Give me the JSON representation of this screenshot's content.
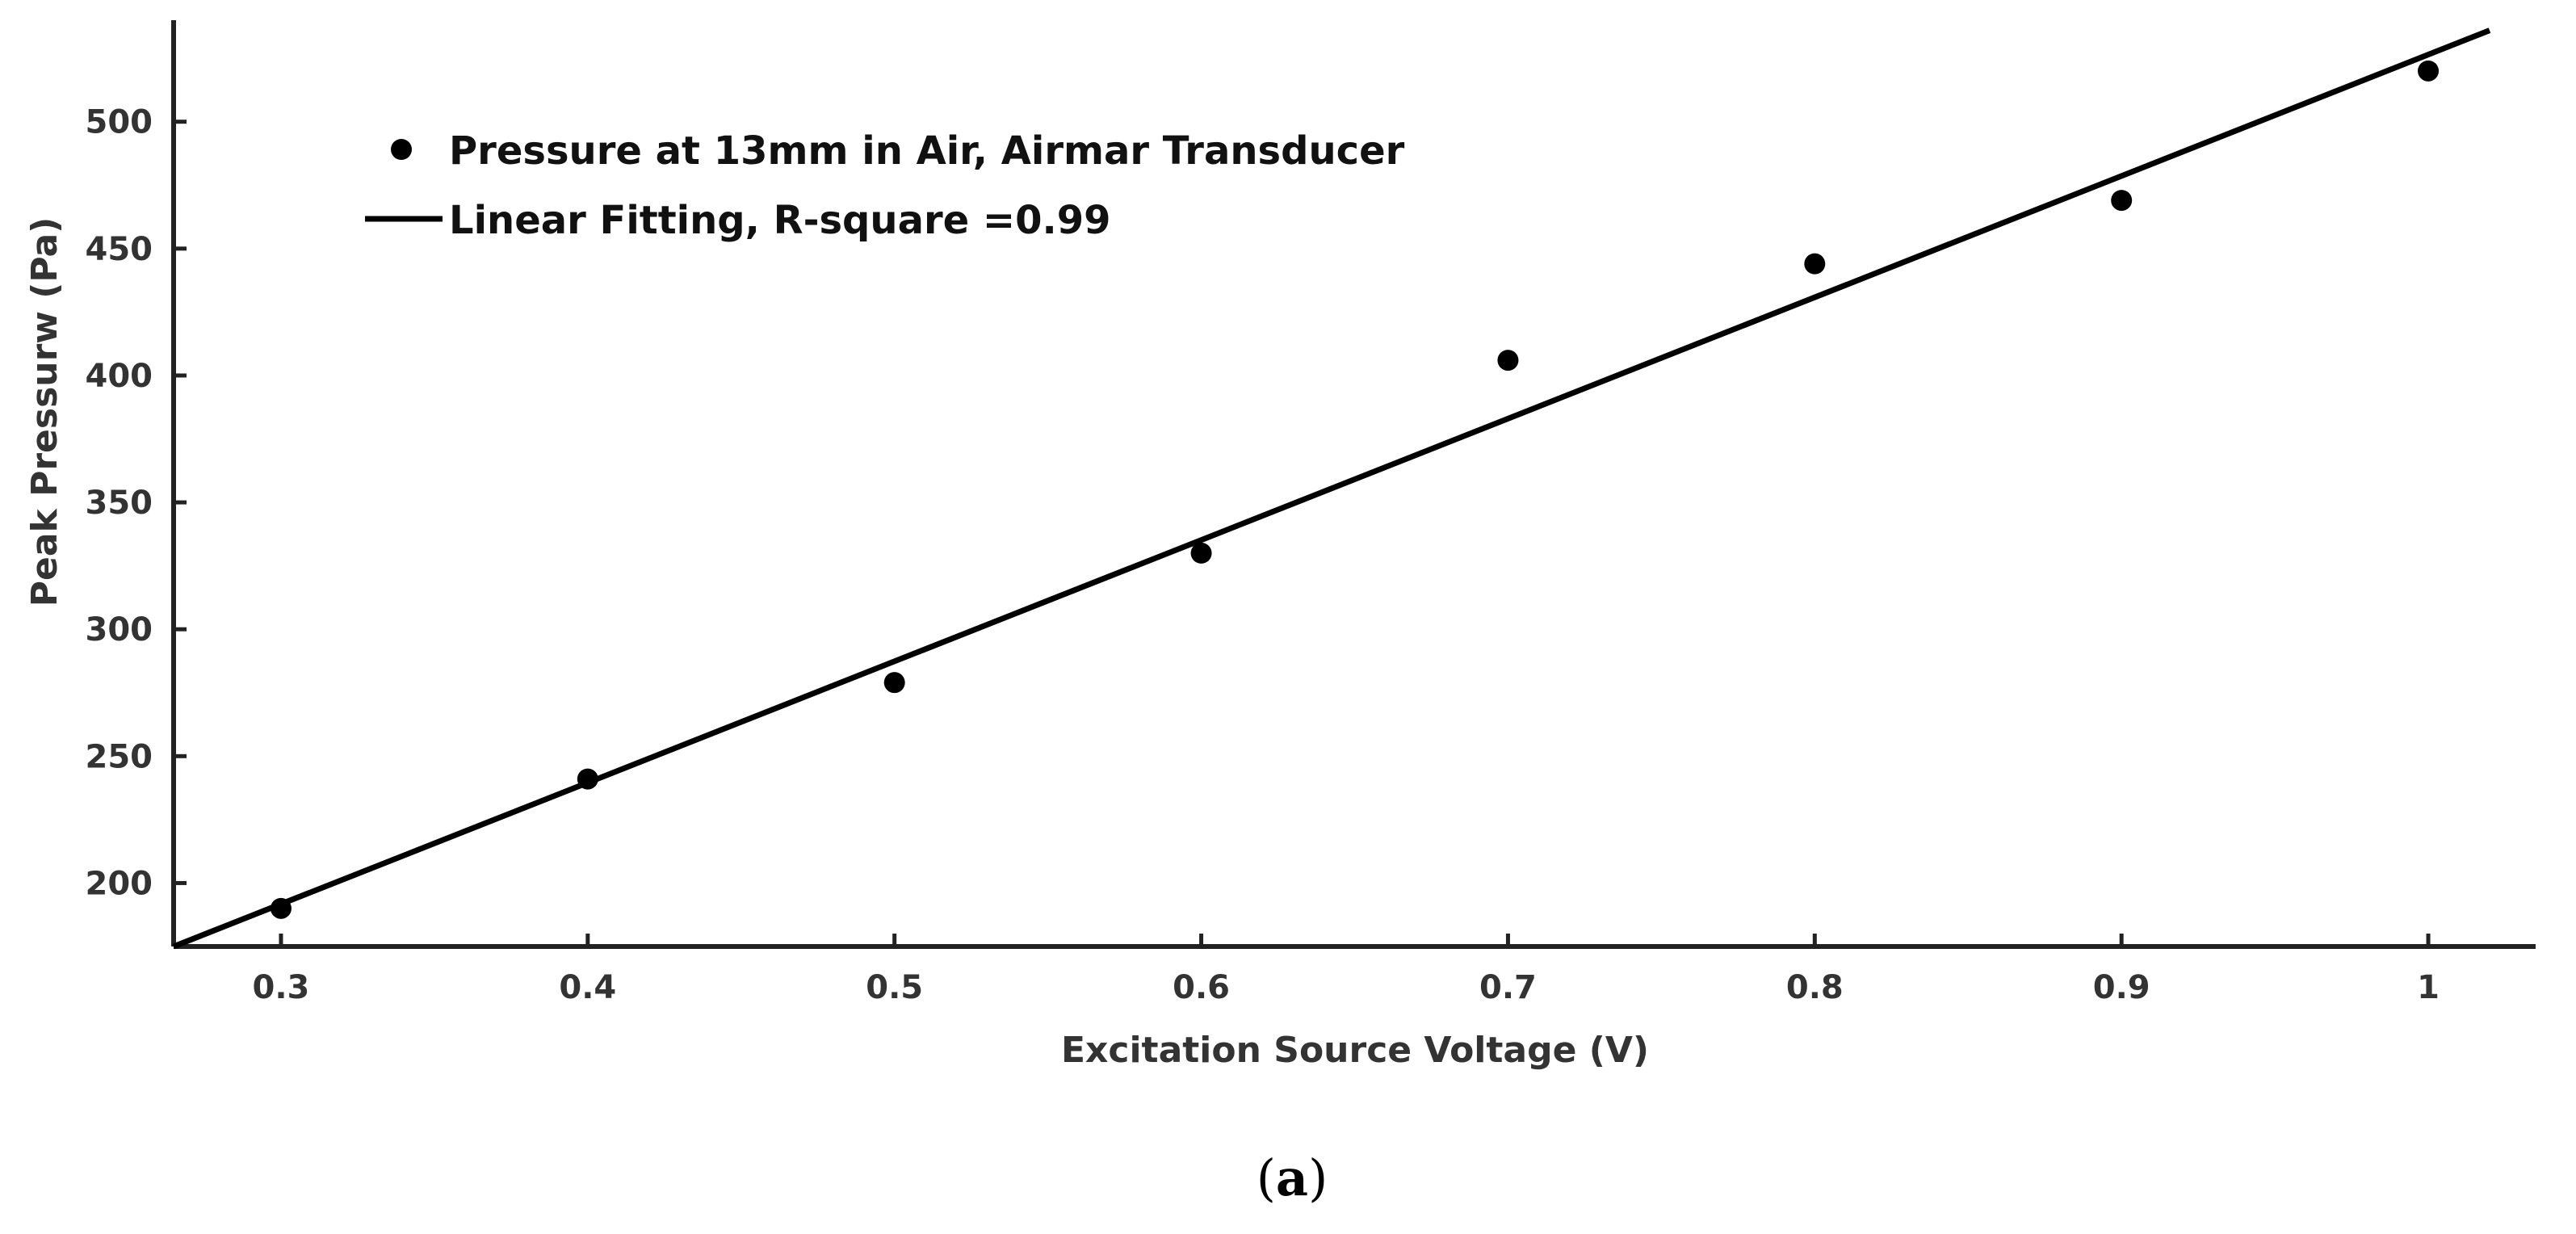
{
  "chart_data": {
    "type": "scatter",
    "xlabel": "Excitation Source Voltage (V)",
    "ylabel": "Peak Pressurw (Pa)",
    "xlim": [
      0.265,
      1.035
    ],
    "ylim": [
      175,
      540
    ],
    "x_ticks": [
      0.3,
      0.4,
      0.5,
      0.6,
      0.7,
      0.8,
      0.9,
      1
    ],
    "x_tick_labels": [
      "0.3",
      "0.4",
      "0.5",
      "0.6",
      "0.7",
      "0.8",
      "0.9",
      "1"
    ],
    "y_ticks": [
      200,
      250,
      300,
      350,
      400,
      450,
      500
    ],
    "y_tick_labels": [
      "200",
      "250",
      "300",
      "350",
      "400",
      "450",
      "500"
    ],
    "grid": false,
    "legend_position": "top-left",
    "series": [
      {
        "name": "Pressure at 13mm in Air, Airmar Transducer",
        "kind": "scatter",
        "color": "#000000",
        "x": [
          0.3,
          0.4,
          0.5,
          0.6,
          0.7,
          0.8,
          0.9,
          1.0
        ],
        "y": [
          190,
          241,
          279,
          330,
          406,
          444,
          469,
          520
        ]
      },
      {
        "name": "Linear Fitting, R-square =0.99",
        "kind": "line",
        "color": "#000000",
        "x": [
          0.265,
          1.02
        ],
        "y": [
          175,
          536
        ]
      }
    ]
  },
  "caption": {
    "open": "(",
    "label": "a",
    "close": ")"
  }
}
